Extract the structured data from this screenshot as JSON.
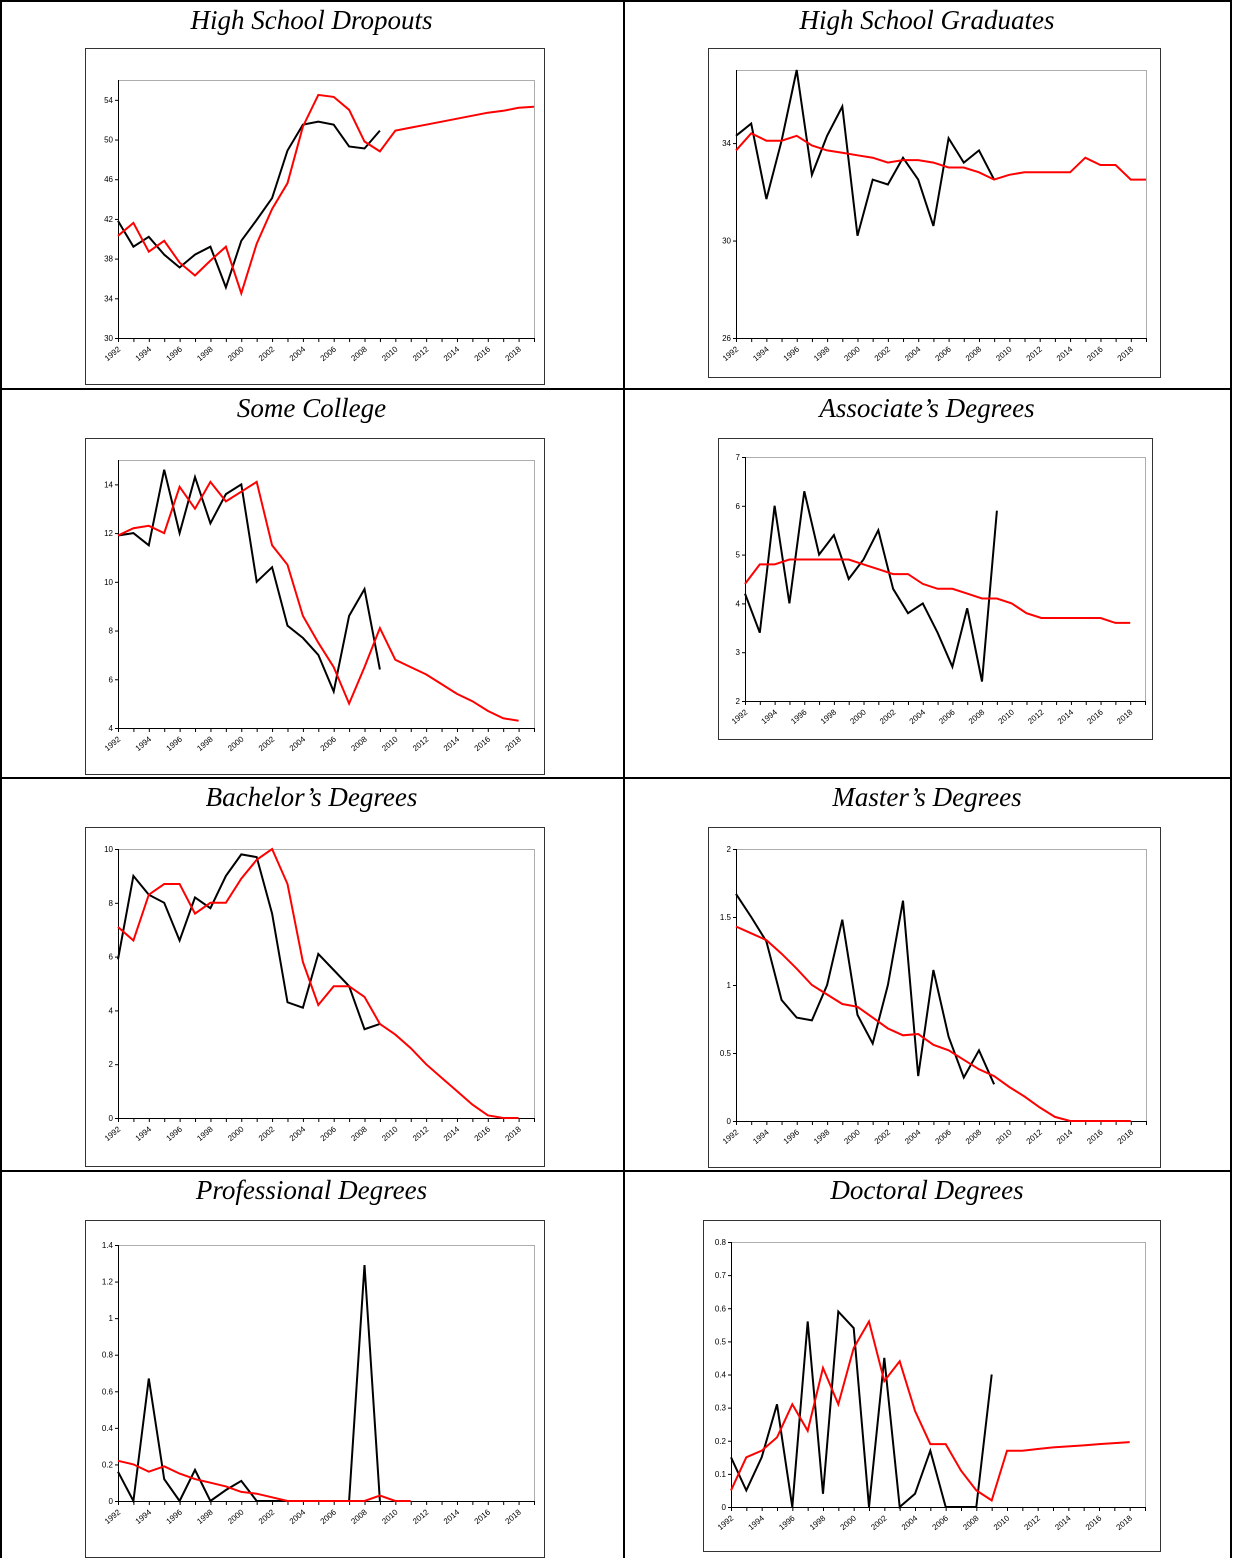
{
  "chart_data": [
    {
      "type": "line",
      "title": "High School Dropouts",
      "ylim": [
        30,
        56
      ],
      "yticks": [
        30,
        34,
        38,
        42,
        46,
        50,
        54
      ],
      "xlim": [
        1992,
        2019
      ],
      "xticks": [
        "1992",
        "1994",
        "1996",
        "1998",
        "2000",
        "2002",
        "2004",
        "2006",
        "2008",
        "2010",
        "2012",
        "2014",
        "2016",
        "2018"
      ],
      "series": [
        {
          "color": "#000000",
          "x": [
            1992,
            1993,
            1994,
            1995,
            1996,
            1997,
            1998,
            1999,
            2000,
            2001,
            2002,
            2003,
            2004,
            2005,
            2006,
            2007,
            2008,
            2009,
            2010
          ],
          "y": [
            41.8,
            39.2,
            40.2,
            38.4,
            37.1,
            38.4,
            39.2,
            35.1,
            39.8,
            41.9,
            44.1,
            48.9,
            51.5,
            51.8,
            51.5,
            49.3,
            49.1,
            50.9,
            null
          ]
        },
        {
          "color": "#ff0000",
          "x": [
            1992,
            1993,
            1994,
            1995,
            1996,
            1997,
            1998,
            1999,
            2000,
            2001,
            2002,
            2003,
            2004,
            2005,
            2006,
            2007,
            2008,
            2009,
            2010,
            2011,
            2012,
            2013,
            2014,
            2015,
            2016,
            2017,
            2018,
            2019
          ],
          "y": [
            40.3,
            41.6,
            38.7,
            39.8,
            37.6,
            36.3,
            37.8,
            39.2,
            34.5,
            39.5,
            43.0,
            45.6,
            51.3,
            54.5,
            54.3,
            53.0,
            49.8,
            48.8,
            50.9,
            51.2,
            51.5,
            51.8,
            52.1,
            52.4,
            52.7,
            52.9,
            53.2,
            53.3
          ]
        }
      ]
    },
    {
      "type": "line",
      "title": "High School Graduates",
      "ylim": [
        26,
        37
      ],
      "yticks": [
        26,
        30,
        34
      ],
      "xlim": [
        1992,
        2019
      ],
      "xticks": [
        "1992",
        "1994",
        "1996",
        "1998",
        "2000",
        "2002",
        "2004",
        "2006",
        "2008",
        "2010",
        "2012",
        "2014",
        "2016",
        "2018"
      ],
      "series": [
        {
          "color": "#000000",
          "x": [
            1992,
            1993,
            1994,
            1995,
            1996,
            1997,
            1998,
            1999,
            2000,
            2001,
            2002,
            2003,
            2004,
            2005,
            2006,
            2007,
            2008,
            2009
          ],
          "y": [
            34.3,
            34.8,
            31.7,
            34.1,
            37.0,
            32.7,
            34.3,
            35.5,
            30.2,
            32.5,
            32.3,
            33.4,
            32.5,
            30.6,
            34.2,
            33.2,
            33.7,
            32.5
          ]
        },
        {
          "color": "#ff0000",
          "x": [
            1992,
            1993,
            1994,
            1995,
            1996,
            1997,
            1998,
            1999,
            2000,
            2001,
            2002,
            2003,
            2004,
            2005,
            2006,
            2007,
            2008,
            2009,
            2010,
            2011,
            2012,
            2013,
            2014,
            2015,
            2016,
            2017,
            2018,
            2019
          ],
          "y": [
            33.7,
            34.4,
            34.1,
            34.1,
            34.3,
            33.9,
            33.7,
            33.6,
            33.5,
            33.4,
            33.2,
            33.3,
            33.3,
            33.2,
            33.0,
            33.0,
            32.8,
            32.5,
            32.7,
            32.8,
            32.8,
            32.8,
            32.8,
            33.4,
            33.1,
            33.1,
            32.5,
            32.5
          ]
        }
      ]
    },
    {
      "type": "line",
      "title": "Some College",
      "ylim": [
        4,
        15
      ],
      "yticks": [
        4,
        6,
        8,
        10,
        12,
        14
      ],
      "ytick_labels": [
        "4",
        "6",
        "8",
        "10",
        "12",
        "14"
      ],
      "xlim": [
        1992,
        2019
      ],
      "xticks": [
        "1992",
        "1994",
        "1996",
        "1998",
        "2000",
        "2002",
        "2004",
        "2006",
        "2008",
        "2010",
        "2012",
        "2014",
        "2016",
        "2018"
      ],
      "series": [
        {
          "color": "#000000",
          "x": [
            1992,
            1993,
            1994,
            1995,
            1996,
            1997,
            1998,
            1999,
            2000,
            2001,
            2002,
            2003,
            2004,
            2005,
            2006,
            2007,
            2008,
            2009
          ],
          "y": [
            11.9,
            12.0,
            11.5,
            14.6,
            12.0,
            14.3,
            12.4,
            13.6,
            14.0,
            10.0,
            10.6,
            8.2,
            7.7,
            7.0,
            5.5,
            8.6,
            9.7,
            6.4
          ]
        },
        {
          "color": "#ff0000",
          "x": [
            1992,
            1993,
            1994,
            1995,
            1996,
            1997,
            1998,
            1999,
            2000,
            2001,
            2002,
            2003,
            2004,
            2005,
            2006,
            2007,
            2008,
            2009,
            2010,
            2011,
            2012,
            2013,
            2014,
            2015,
            2016,
            2017,
            2018
          ],
          "y": [
            11.9,
            12.2,
            12.3,
            12.0,
            13.9,
            13.0,
            14.1,
            13.3,
            13.7,
            14.1,
            11.5,
            10.7,
            8.6,
            7.5,
            6.5,
            5.0,
            6.5,
            8.1,
            6.8,
            6.5,
            6.2,
            5.8,
            5.4,
            5.1,
            4.7,
            4.4,
            4.3
          ]
        }
      ]
    },
    {
      "type": "line",
      "title": "Associate’s Degrees",
      "ylim": [
        2,
        7
      ],
      "yticks": [
        2,
        3,
        4,
        5,
        6,
        7
      ],
      "xlim": [
        1992,
        2019
      ],
      "xticks": [
        "1992",
        "1994",
        "1996",
        "1998",
        "2000",
        "2002",
        "2004",
        "2006",
        "2008",
        "2010",
        "2012",
        "2014",
        "2016",
        "2018"
      ],
      "series": [
        {
          "color": "#000000",
          "x": [
            1992,
            1993,
            1994,
            1995,
            1996,
            1997,
            1998,
            1999,
            2000,
            2001,
            2002,
            2003,
            2004,
            2005,
            2006,
            2007,
            2008,
            2009
          ],
          "y": [
            4.2,
            3.4,
            6.0,
            4.0,
            6.3,
            5.0,
            5.4,
            4.5,
            4.9,
            5.5,
            4.3,
            3.8,
            4.0,
            3.4,
            2.7,
            3.9,
            2.4,
            5.9
          ]
        },
        {
          "color": "#ff0000",
          "x": [
            1992,
            1993,
            1994,
            1995,
            1996,
            1997,
            1998,
            1999,
            2000,
            2001,
            2002,
            2003,
            2004,
            2005,
            2006,
            2007,
            2008,
            2009,
            2010,
            2011,
            2012,
            2013,
            2014,
            2015,
            2016,
            2017,
            2018
          ],
          "y": [
            4.4,
            4.8,
            4.8,
            4.9,
            4.9,
            4.9,
            4.9,
            4.9,
            4.8,
            4.7,
            4.6,
            4.6,
            4.4,
            4.3,
            4.3,
            4.2,
            4.1,
            4.1,
            4.0,
            3.8,
            3.7,
            3.7,
            3.7,
            3.7,
            3.7,
            3.6,
            3.6
          ]
        }
      ]
    },
    {
      "type": "line",
      "title": "Bachelor’s Degrees",
      "ylim": [
        0,
        10
      ],
      "yticks": [
        0,
        2,
        4,
        6,
        8,
        10
      ],
      "ytick_labels": [
        "0",
        "2",
        "4",
        "6",
        "8",
        "10"
      ],
      "xlim": [
        1992,
        2019
      ],
      "xticks": [
        "1992",
        "1994",
        "1996",
        "1998",
        "2000",
        "2002",
        "2004",
        "2006",
        "2008",
        "2010",
        "2012",
        "2014",
        "2016",
        "2018"
      ],
      "series": [
        {
          "color": "#000000",
          "x": [
            1992,
            1993,
            1994,
            1995,
            1996,
            1997,
            1998,
            1999,
            2000,
            2001,
            2002,
            2003,
            2004,
            2005,
            2006,
            2007,
            2008,
            2009
          ],
          "y": [
            5.9,
            9.0,
            8.3,
            8.0,
            6.6,
            8.2,
            7.8,
            9.0,
            9.8,
            9.7,
            7.6,
            4.3,
            4.1,
            6.1,
            5.5,
            4.9,
            3.3,
            3.5
          ]
        },
        {
          "color": "#ff0000",
          "x": [
            1992,
            1993,
            1994,
            1995,
            1996,
            1997,
            1998,
            1999,
            2000,
            2001,
            2002,
            2003,
            2004,
            2005,
            2006,
            2007,
            2008,
            2009,
            2010,
            2011,
            2012,
            2013,
            2014,
            2015,
            2016,
            2017,
            2018
          ],
          "y": [
            7.1,
            6.6,
            8.3,
            8.7,
            8.7,
            7.6,
            8.0,
            8.0,
            8.9,
            9.6,
            10.0,
            8.7,
            5.8,
            4.2,
            4.9,
            4.9,
            4.5,
            3.5,
            3.1,
            2.6,
            2.0,
            1.5,
            1.0,
            0.5,
            0.1,
            0.0,
            0.0
          ]
        }
      ]
    },
    {
      "type": "line",
      "title": "Master’s Degrees",
      "ylim": [
        0,
        2
      ],
      "yticks": [
        0,
        0.5,
        1,
        1.5,
        2
      ],
      "ytick_labels": [
        "0",
        "0.5",
        "1",
        "1.5",
        "2"
      ],
      "xlim": [
        1992,
        2019
      ],
      "xticks": [
        "1992",
        "1994",
        "1996",
        "1998",
        "2000",
        "2002",
        "2004",
        "2006",
        "2008",
        "2010",
        "2012",
        "2014",
        "2016",
        "2018"
      ],
      "series": [
        {
          "color": "#000000",
          "x": [
            1992,
            1993,
            1994,
            1995,
            1996,
            1997,
            1998,
            1999,
            2000,
            2001,
            2002,
            2003,
            2004,
            2005,
            2006,
            2007,
            2008,
            2009
          ],
          "y": [
            1.67,
            1.5,
            1.32,
            0.89,
            0.76,
            0.74,
            1.0,
            1.48,
            0.78,
            0.57,
            1.0,
            1.62,
            0.33,
            1.11,
            0.62,
            0.32,
            0.52,
            0.27
          ]
        },
        {
          "color": "#ff0000",
          "x": [
            1992,
            1993,
            1994,
            1995,
            1996,
            1997,
            1998,
            1999,
            2000,
            2001,
            2002,
            2003,
            2004,
            2005,
            2006,
            2007,
            2008,
            2009,
            2010,
            2011,
            2012,
            2013,
            2014,
            2015,
            2016,
            2017,
            2018
          ],
          "y": [
            1.43,
            1.38,
            1.33,
            1.23,
            1.12,
            1.0,
            0.93,
            0.86,
            0.84,
            0.76,
            0.68,
            0.63,
            0.64,
            0.56,
            0.52,
            0.45,
            0.38,
            0.33,
            0.25,
            0.18,
            0.1,
            0.03,
            0.0,
            0.0,
            0.0,
            0.0,
            0.0
          ]
        }
      ]
    },
    {
      "type": "line",
      "title": "Professional Degrees",
      "ylim": [
        0,
        1.4
      ],
      "yticks": [
        0,
        0.2,
        0.4,
        0.6,
        0.8,
        1,
        1.2,
        1.4
      ],
      "xlim": [
        1992,
        2019
      ],
      "xticks": [
        "1992",
        "1994",
        "1996",
        "1998",
        "2000",
        "2002",
        "2004",
        "2006",
        "2008",
        "2010",
        "2012",
        "2014",
        "2016",
        "2018"
      ],
      "series": [
        {
          "color": "#000000",
          "x": [
            1992,
            1993,
            1994,
            1995,
            1996,
            1997,
            1998,
            1999,
            2000,
            2001,
            2002,
            2003,
            2004,
            2005,
            2006,
            2007,
            2008,
            2009
          ],
          "y": [
            0.16,
            0.0,
            0.67,
            0.12,
            0.0,
            0.17,
            0.0,
            0.06,
            0.11,
            0.0,
            0.0,
            0.0,
            0.0,
            0.0,
            0.0,
            0.0,
            1.29,
            0.0
          ]
        },
        {
          "color": "#ff0000",
          "x": [
            1992,
            1993,
            1994,
            1995,
            1996,
            1997,
            1998,
            1999,
            2000,
            2001,
            2002,
            2003,
            2004,
            2005,
            2006,
            2007,
            2008,
            2009,
            2010,
            2011
          ],
          "y": [
            0.22,
            0.2,
            0.16,
            0.19,
            0.15,
            0.12,
            0.1,
            0.08,
            0.05,
            0.04,
            0.02,
            0.0,
            0.0,
            0.0,
            0.0,
            0.0,
            0.0,
            0.03,
            0.0,
            0.0
          ]
        }
      ]
    },
    {
      "type": "line",
      "title": "Doctoral Degrees",
      "ylim": [
        0,
        0.8
      ],
      "yticks": [
        0,
        0.1,
        0.2,
        0.3,
        0.4,
        0.5,
        0.6,
        0.7,
        0.8
      ],
      "xlim": [
        1992,
        2019
      ],
      "xticks": [
        "1992",
        "1994",
        "1996",
        "1998",
        "2000",
        "2002",
        "2004",
        "2006",
        "2008",
        "2010",
        "2012",
        "2014",
        "2016",
        "2018"
      ],
      "series": [
        {
          "color": "#000000",
          "x": [
            1992,
            1993,
            1994,
            1995,
            1996,
            1997,
            1998,
            1999,
            2000,
            2001,
            2002,
            2003,
            2004,
            2005,
            2006,
            2007,
            2008,
            2009
          ],
          "y": [
            0.15,
            0.05,
            0.15,
            0.31,
            0.0,
            0.56,
            0.04,
            0.59,
            0.54,
            0.0,
            0.45,
            0.0,
            0.04,
            0.17,
            0.0,
            0.0,
            0.0,
            0.4
          ]
        },
        {
          "color": "#ff0000",
          "x": [
            1992,
            1993,
            1994,
            1995,
            1996,
            1997,
            1998,
            1999,
            2000,
            2001,
            2002,
            2003,
            2004,
            2005,
            2006,
            2007,
            2008,
            2009,
            2010,
            2011,
            2012,
            2013,
            2014,
            2015,
            2016,
            2017,
            2018
          ],
          "y": [
            0.05,
            0.15,
            0.17,
            0.21,
            0.31,
            0.23,
            0.42,
            0.31,
            0.48,
            0.56,
            0.38,
            0.44,
            0.29,
            0.19,
            0.19,
            0.11,
            0.05,
            0.02,
            0.17,
            0.17,
            0.175,
            0.18,
            0.183,
            0.186,
            0.19,
            0.193,
            0.196
          ]
        }
      ]
    }
  ]
}
